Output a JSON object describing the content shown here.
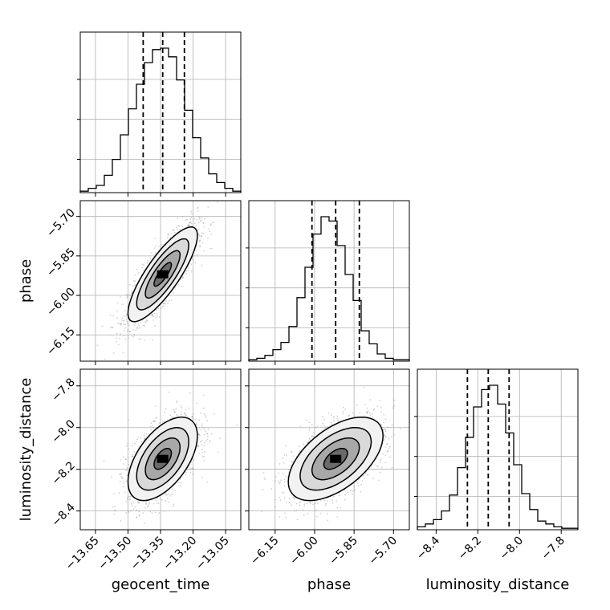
{
  "chart_data": {
    "type": "corner",
    "parameters": [
      "geocent_time",
      "phase",
      "luminosity_distance"
    ],
    "axis_ranges": {
      "geocent_time": [
        -13.72,
        -12.98
      ],
      "phase": [
        -6.25,
        -5.64
      ],
      "luminosity_distance": [
        -8.49,
        -7.72
      ]
    },
    "tick_values": {
      "geocent_time": [
        -13.65,
        -13.5,
        -13.35,
        -13.2,
        -13.05
      ],
      "phase": [
        -6.15,
        -6.0,
        -5.85,
        -5.7
      ],
      "luminosity_distance": [
        -8.4,
        -8.2,
        -8.0,
        -7.8
      ]
    },
    "tick_labels": {
      "geocent_time": [
        "−13.65",
        "−13.50",
        "−13.35",
        "−13.20",
        "−13.05"
      ],
      "phase": [
        "−6.15",
        "−6.00",
        "−5.85",
        "−5.70"
      ],
      "luminosity_distance": [
        "−8.4",
        "−8.2",
        "−8.0",
        "−7.8"
      ]
    },
    "quantiles": {
      "geocent_time": [
        -13.43,
        -13.34,
        -13.24
      ],
      "phase": [
        -6.01,
        -5.92,
        -5.83
      ],
      "luminosity_distance": [
        -8.25,
        -8.15,
        -8.05
      ]
    },
    "histograms": {
      "geocent_time": {
        "edges_range": [
          -13.72,
          -12.98
        ],
        "counts": [
          0.01,
          0.03,
          0.05,
          0.12,
          0.23,
          0.4,
          0.58,
          0.75,
          0.9,
          0.99,
          1.0,
          0.94,
          0.78,
          0.57,
          0.38,
          0.24,
          0.13,
          0.07,
          0.03,
          0.01
        ]
      },
      "phase": {
        "edges_range": [
          -6.25,
          -5.64
        ],
        "counts": [
          0.01,
          0.02,
          0.04,
          0.08,
          0.13,
          0.24,
          0.44,
          0.65,
          0.88,
          1.0,
          0.97,
          0.8,
          0.6,
          0.42,
          0.21,
          0.12,
          0.05,
          0.02,
          0.01,
          0.01
        ]
      },
      "luminosity_distance": {
        "edges_range": [
          -8.49,
          -7.72
        ],
        "counts": [
          0.02,
          0.04,
          0.07,
          0.13,
          0.24,
          0.43,
          0.64,
          0.85,
          0.97,
          1.0,
          0.87,
          0.67,
          0.45,
          0.25,
          0.14,
          0.06,
          0.04,
          0.02,
          0.01,
          0.01
        ]
      }
    },
    "joint": [
      {
        "x": "geocent_time",
        "y": "phase",
        "mean": [
          -13.34,
          -5.92
        ],
        "sd": [
          0.08,
          0.09
        ],
        "rho": 0.82
      },
      {
        "x": "geocent_time",
        "y": "luminosity_distance",
        "mean": [
          -13.34,
          -8.15
        ],
        "sd": [
          0.08,
          0.1
        ],
        "rho": 0.55
      },
      {
        "x": "phase",
        "y": "luminosity_distance",
        "mean": [
          -5.92,
          -8.15
        ],
        "sd": [
          0.09,
          0.1
        ],
        "rho": 0.55
      }
    ],
    "contour_levels_sigma": [
      0.5,
      1.0,
      1.5,
      2.0
    ],
    "grid": true,
    "colors": {
      "line": "#000000",
      "grid": "#b0b0b0",
      "samples": "#9a9a9a"
    }
  }
}
